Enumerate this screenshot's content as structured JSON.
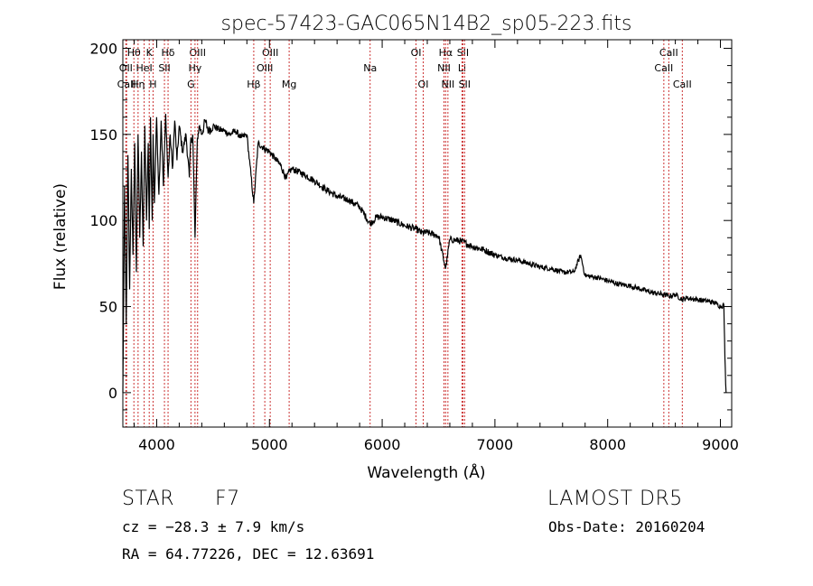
{
  "chart_data": {
    "type": "line",
    "title": "spec-57423-GAC065N14B2_sp05-223.fits",
    "xlabel": "Wavelength (Å)",
    "ylabel": "Flux (relative)",
    "xlim": [
      3700,
      9100
    ],
    "ylim": [
      -20,
      205
    ],
    "xticks": [
      4000,
      5000,
      6000,
      7000,
      8000,
      9000
    ],
    "yticks": [
      0,
      50,
      100,
      150,
      200
    ],
    "grid": false,
    "series": [
      {
        "x": [
          3700,
          3715,
          3730,
          3745,
          3760,
          3775,
          3790,
          3805,
          3820,
          3835,
          3850,
          3865,
          3880,
          3895,
          3910,
          3925,
          3934,
          3945,
          3960,
          3968,
          3980,
          4000,
          4020,
          4040,
          4060,
          4080,
          4101,
          4120,
          4140,
          4160,
          4180,
          4200,
          4230,
          4260,
          4290,
          4300,
          4320,
          4340,
          4361,
          4380,
          4400,
          4430,
          4460,
          4500,
          4550,
          4600,
          4650,
          4700,
          4750,
          4800,
          4861,
          4900,
          4950,
          5000,
          5050,
          5100,
          5150,
          5172,
          5200,
          5300,
          5400,
          5500,
          5600,
          5700,
          5800,
          5893,
          5950,
          6000,
          6100,
          6200,
          6300,
          6350,
          6400,
          6500,
          6563,
          6600,
          6700,
          6800,
          6900,
          7000,
          7100,
          7200,
          7300,
          7400,
          7500,
          7600,
          7700,
          7760,
          7800,
          7900,
          8000,
          8100,
          8200,
          8300,
          8400,
          8498,
          8542,
          8600,
          8662,
          8700,
          8800,
          8900,
          8960,
          9000,
          9030,
          9040,
          9050
        ],
        "y": [
          0,
          120,
          40,
          138,
          60,
          130,
          80,
          145,
          70,
          150,
          90,
          140,
          85,
          155,
          100,
          145,
          95,
          160,
          100,
          150,
          110,
          160,
          115,
          158,
          120,
          162,
          125,
          150,
          130,
          158,
          135,
          155,
          140,
          150,
          125,
          145,
          150,
          90,
          148,
          155,
          150,
          158,
          152,
          155,
          153,
          152,
          150,
          152,
          148,
          150,
          110,
          145,
          142,
          140,
          136,
          132,
          124,
          128,
          130,
          127,
          123,
          118,
          114,
          112,
          108,
          98,
          102,
          102,
          100,
          97,
          95,
          93,
          93,
          91,
          72,
          89,
          88,
          85,
          83,
          80,
          78,
          77,
          75,
          73,
          72,
          70,
          70,
          80,
          68,
          67,
          65,
          63,
          62,
          60,
          58,
          57,
          56,
          57,
          54,
          55,
          54,
          53,
          52,
          50,
          51,
          20,
          0
        ]
      }
    ],
    "lines": [
      {
        "label": "Hθ",
        "x": 3798,
        "row": 1
      },
      {
        "label": "OII",
        "x": 3727,
        "row": 2
      },
      {
        "label": "CaII",
        "x": 3733,
        "row": 3
      },
      {
        "label": "HeI",
        "x": 3889,
        "row": 2
      },
      {
        "label": "Hη",
        "x": 3835,
        "row": 3
      },
      {
        "label": "K",
        "x": 3934,
        "row": 1
      },
      {
        "label": "SII",
        "x": 4069,
        "row": 2
      },
      {
        "label": "H",
        "x": 3968,
        "row": 3
      },
      {
        "label": "Hδ",
        "x": 4101,
        "row": 1
      },
      {
        "label": "OIII",
        "x": 4363,
        "row": 1
      },
      {
        "label": "Hγ",
        "x": 4340,
        "row": 2
      },
      {
        "label": "G",
        "x": 4304,
        "row": 3
      },
      {
        "label": "Hβ",
        "x": 4861,
        "row": 3
      },
      {
        "label": "OIII",
        "x": 5007,
        "row": 1
      },
      {
        "label": "OIII",
        "x": 4959,
        "row": 2
      },
      {
        "label": "Mg",
        "x": 5175,
        "row": 3
      },
      {
        "label": "Na",
        "x": 5893,
        "row": 2
      },
      {
        "label": "OI",
        "x": 6300,
        "row": 1
      },
      {
        "label": "OI",
        "x": 6364,
        "row": 3
      },
      {
        "label": "Hα",
        "x": 6563,
        "row": 1
      },
      {
        "label": "NII",
        "x": 6548,
        "row": 2
      },
      {
        "label": "NII",
        "x": 6583,
        "row": 3
      },
      {
        "label": "SII",
        "x": 6716,
        "row": 1
      },
      {
        "label": "Li",
        "x": 6708,
        "row": 2
      },
      {
        "label": "SII",
        "x": 6731,
        "row": 3
      },
      {
        "label": "CaII",
        "x": 8542,
        "row": 1
      },
      {
        "label": "CaII",
        "x": 8498,
        "row": 2
      },
      {
        "label": "CaII",
        "x": 8662,
        "row": 3
      }
    ]
  },
  "info": {
    "object_class": "STAR",
    "subclass": "F7",
    "survey": "LAMOST DR5",
    "cz": "cz = −28.3 ± 7.9 km/s",
    "obs_date": "Obs-Date: 20160204",
    "coords": "RA =  64.77226, DEC =  12.63691"
  },
  "colors": {
    "line_marker": "#cc3333",
    "spectrum": "#000000"
  }
}
